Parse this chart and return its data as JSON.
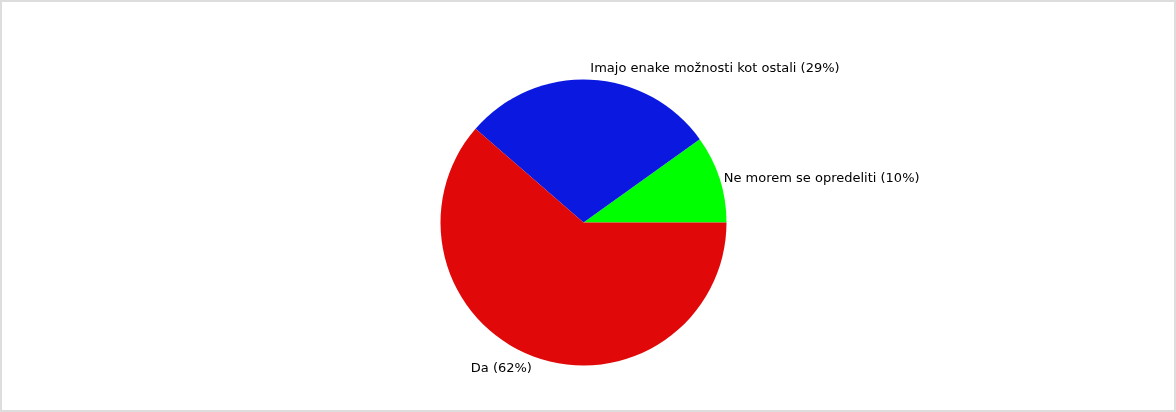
{
  "chart_data": {
    "type": "pie",
    "categories": [
      "Ne morem se opredeliti (10%)",
      "Imajo enake možnosti kot ostali (29%)",
      "Da (62%)"
    ],
    "values": [
      10,
      29,
      62
    ],
    "colors": [
      "#00ff00",
      "#0a18e0",
      "#e00808"
    ]
  }
}
